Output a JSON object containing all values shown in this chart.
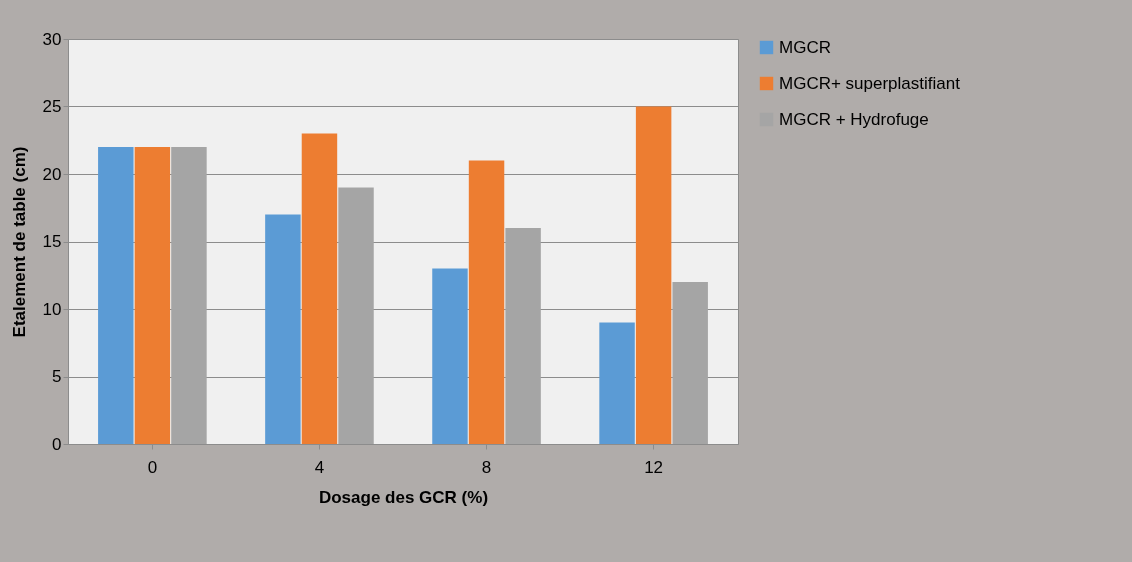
{
  "chart_data": {
    "type": "bar",
    "xlabel": "Dosage des GCR (%)",
    "ylabel": "Etalement de table  (cm)",
    "categories": [
      "0",
      "4",
      "8",
      "12"
    ],
    "series": [
      {
        "name": "MGCR",
        "color": "#5b9bd5",
        "values": [
          22,
          17,
          13,
          9
        ]
      },
      {
        "name": "MGCR+ superplastifiant",
        "color": "#ed7d31",
        "values": [
          22,
          23,
          21,
          25
        ]
      },
      {
        "name": "MGCR + Hydrofuge",
        "color": "#a5a5a5",
        "values": [
          22,
          19,
          16,
          12
        ]
      }
    ],
    "ylim": [
      0,
      30
    ],
    "yticks": [
      0,
      5,
      10,
      15,
      20,
      25,
      30
    ],
    "grid": "y",
    "legend": "right"
  }
}
